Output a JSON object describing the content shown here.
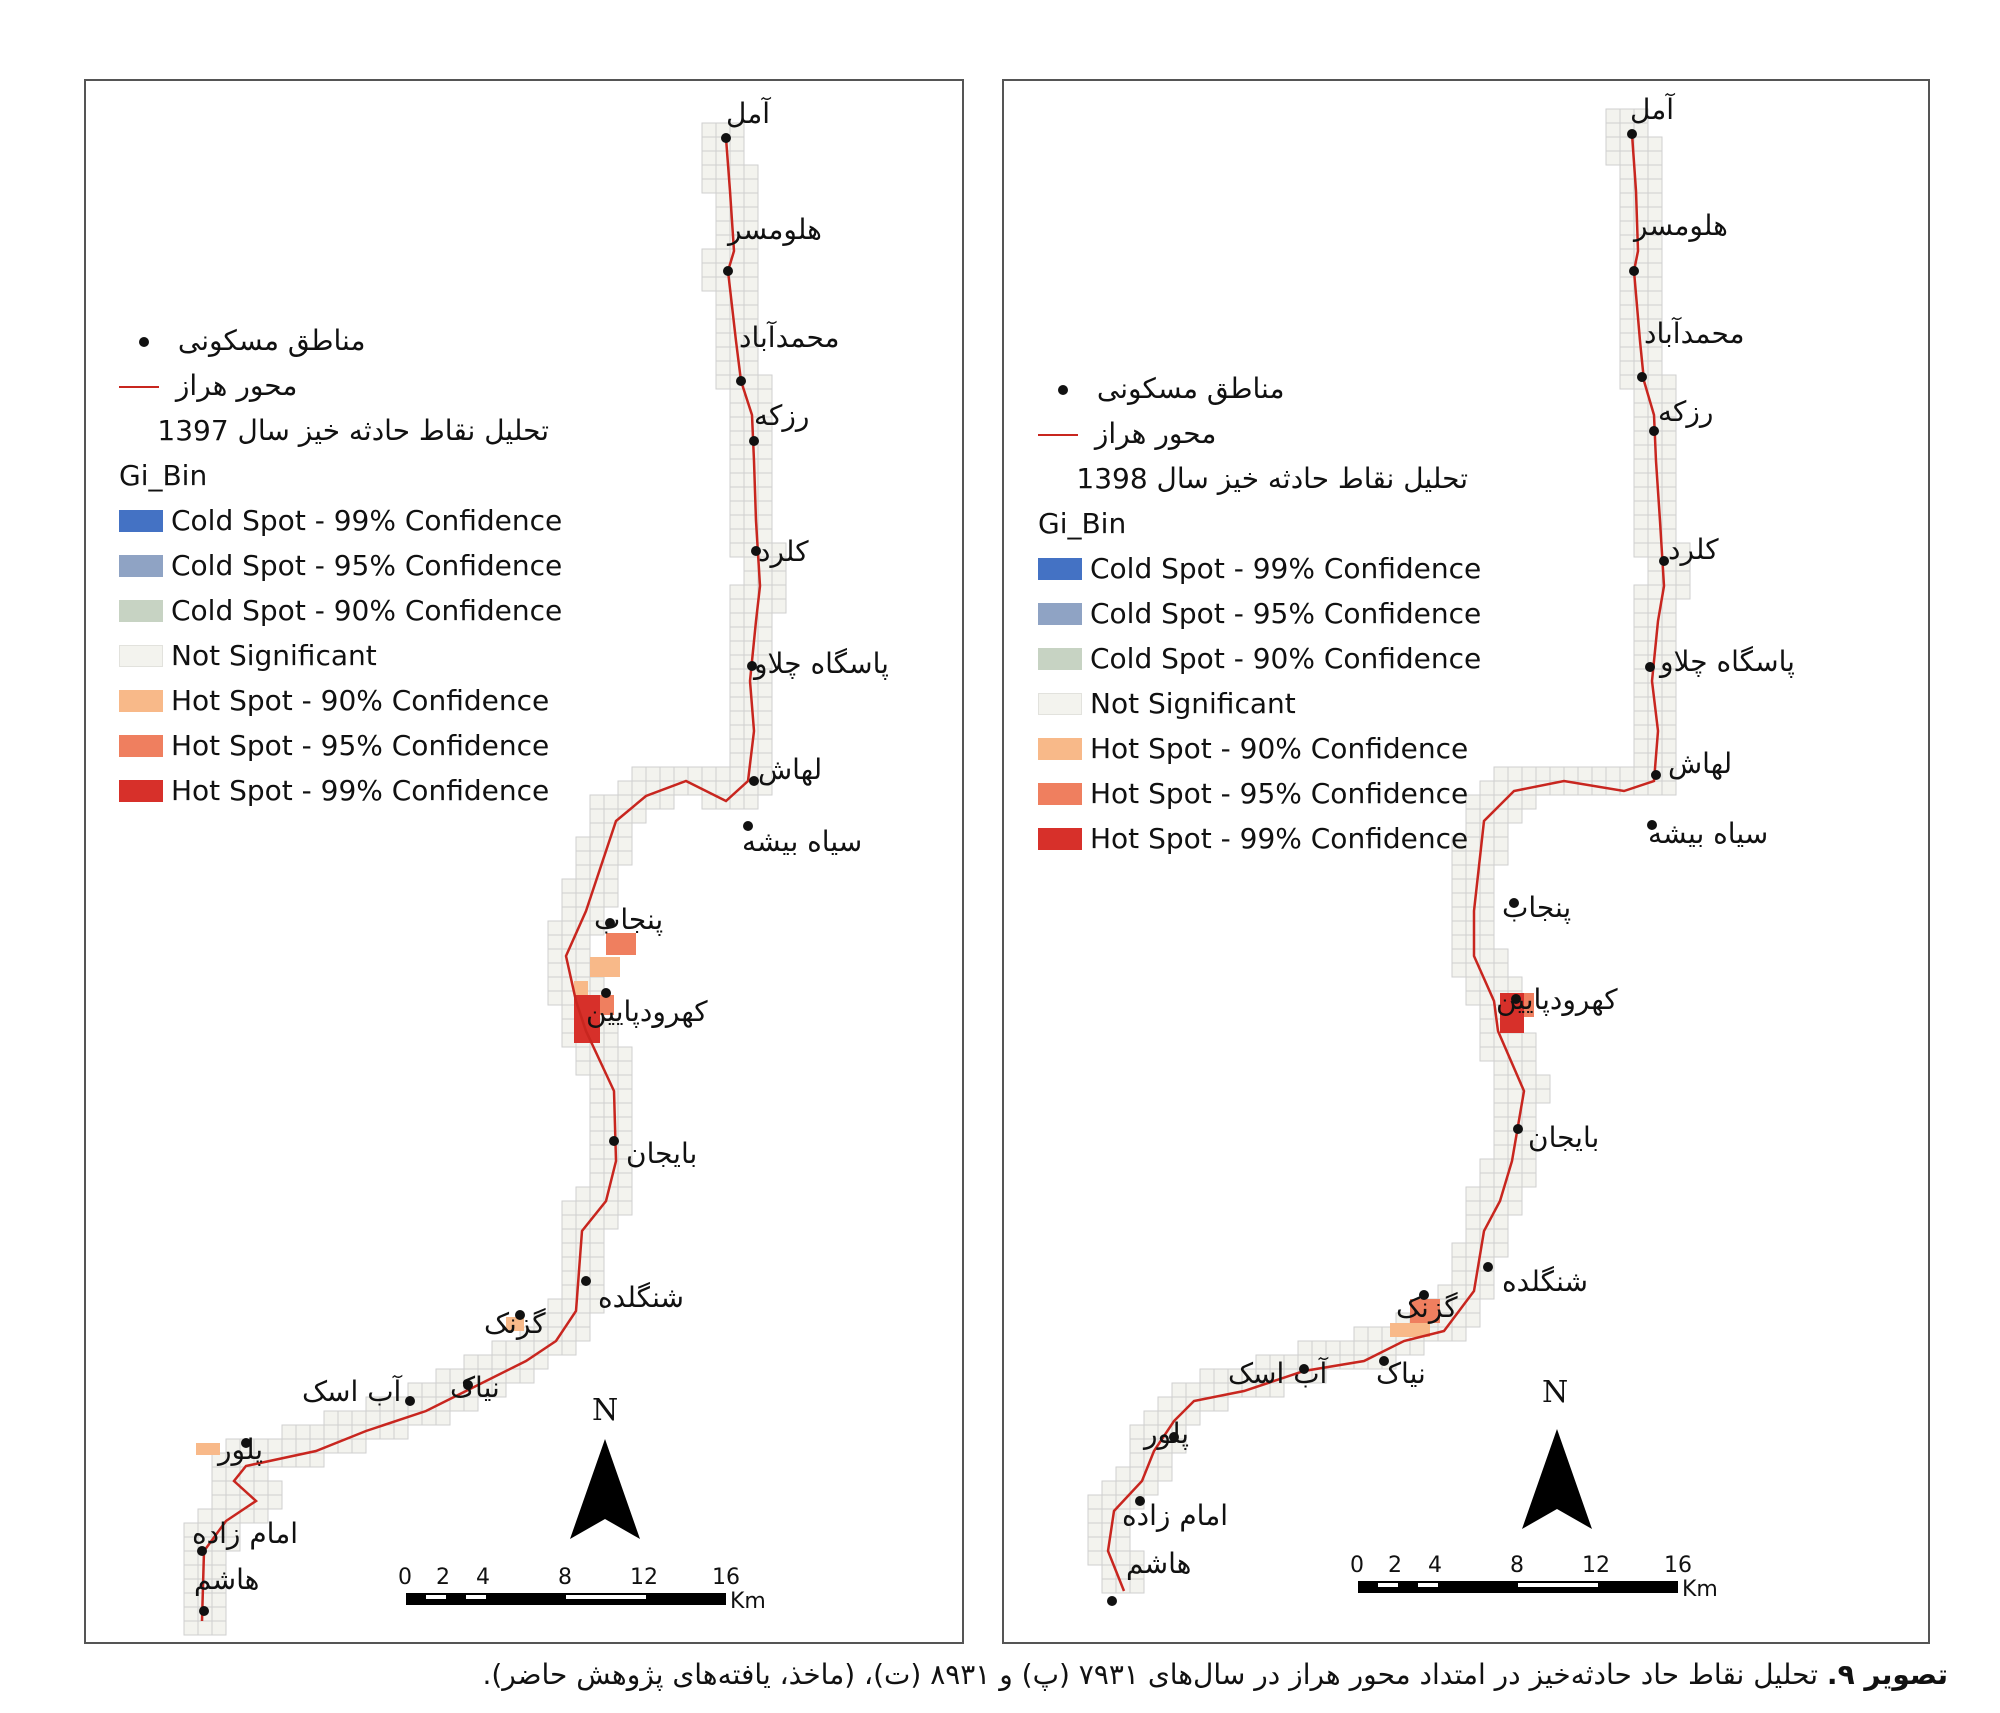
{
  "colors": {
    "road": "#c8261f",
    "grid": "#cfcfcf",
    "cold99": "#4472c4",
    "cold95": "#8fa3c4",
    "cold90": "#c7d3c3",
    "not_sig": "#f3f3ee",
    "hot90": "#f8b989",
    "hot95": "#ef7f5f",
    "hot99": "#d7302a"
  },
  "maps": [
    {
      "id": "left",
      "legend": {
        "settlements": "مناطق مسکونی",
        "road": "محور هراز",
        "title": "تحلیل نقاط حادثه خیز سال 1397",
        "field": "Gi_Bin",
        "classes": [
          {
            "label": "Cold Spot - 99% Confidence",
            "color": "#4472c4"
          },
          {
            "label": "Cold Spot - 95% Confidence",
            "color": "#8fa3c4"
          },
          {
            "label": "Cold Spot - 90% Confidence",
            "color": "#c7d3c3"
          },
          {
            "label": "Not Significant",
            "color": "#f3f3ee"
          },
          {
            "label": "Hot Spot - 90% Confidence",
            "color": "#f8b989"
          },
          {
            "label": "Hot Spot - 95% Confidence",
            "color": "#ef7f5f"
          },
          {
            "label": "Hot Spot - 99% Confidence",
            "color": "#d7302a"
          }
        ]
      },
      "places": [
        "آمل",
        "هلومسر",
        "محمدآباد",
        "رزکه",
        "کلرد",
        "پاسگاه چلاو",
        "لهاش",
        "سیاه بیشه",
        "پنجاب",
        "کهرودپایین",
        "بایجان",
        "شنگلده",
        "گزنک",
        "نیاک",
        "آب اسک",
        "پلور",
        "امام زاده",
        "هاشم"
      ],
      "north": "N",
      "scale_ticks": [
        "0",
        "2",
        "4",
        "8",
        "12",
        "16"
      ],
      "scale_unit": "Km"
    },
    {
      "id": "right",
      "legend": {
        "settlements": "مناطق مسکونی",
        "road": "محور هراز",
        "title": "تحلیل نقاط حادثه خیز سال 1398",
        "field": "Gi_Bin",
        "classes": [
          {
            "label": "Cold Spot - 99% Confidence",
            "color": "#4472c4"
          },
          {
            "label": "Cold Spot - 95% Confidence",
            "color": "#8fa3c4"
          },
          {
            "label": "Cold Spot - 90% Confidence",
            "color": "#c7d3c3"
          },
          {
            "label": "Not Significant",
            "color": "#f3f3ee"
          },
          {
            "label": "Hot Spot - 90% Confidence",
            "color": "#f8b989"
          },
          {
            "label": "Hot Spot - 95% Confidence",
            "color": "#ef7f5f"
          },
          {
            "label": "Hot Spot - 99% Confidence",
            "color": "#d7302a"
          }
        ]
      },
      "places": [
        "آمل",
        "هلومسر",
        "محمدآباد",
        "رزکه",
        "کلرد",
        "پاسگاه چلاو",
        "لهاش",
        "سیاه بیشه",
        "پنجاب",
        "کهرودپایین",
        "بایجان",
        "شنگلده",
        "گزنک",
        "نیاک",
        "آب اسک",
        "پلور",
        "امام زاده",
        "هاشم"
      ],
      "north": "N",
      "scale_ticks": [
        "0",
        "2",
        "4",
        "8",
        "12",
        "16"
      ],
      "scale_unit": "Km"
    }
  ],
  "caption": {
    "bold": "تصویر ۹.",
    "text": " تحلیل نقاط حاد حادثه‌خیز در امتداد محور هراز در سال‌های ۷۹۳۱ (پ) و ۸۹۳۱ (ت)، (ماخذ، یافته‌های پژوهش حاضر)."
  }
}
